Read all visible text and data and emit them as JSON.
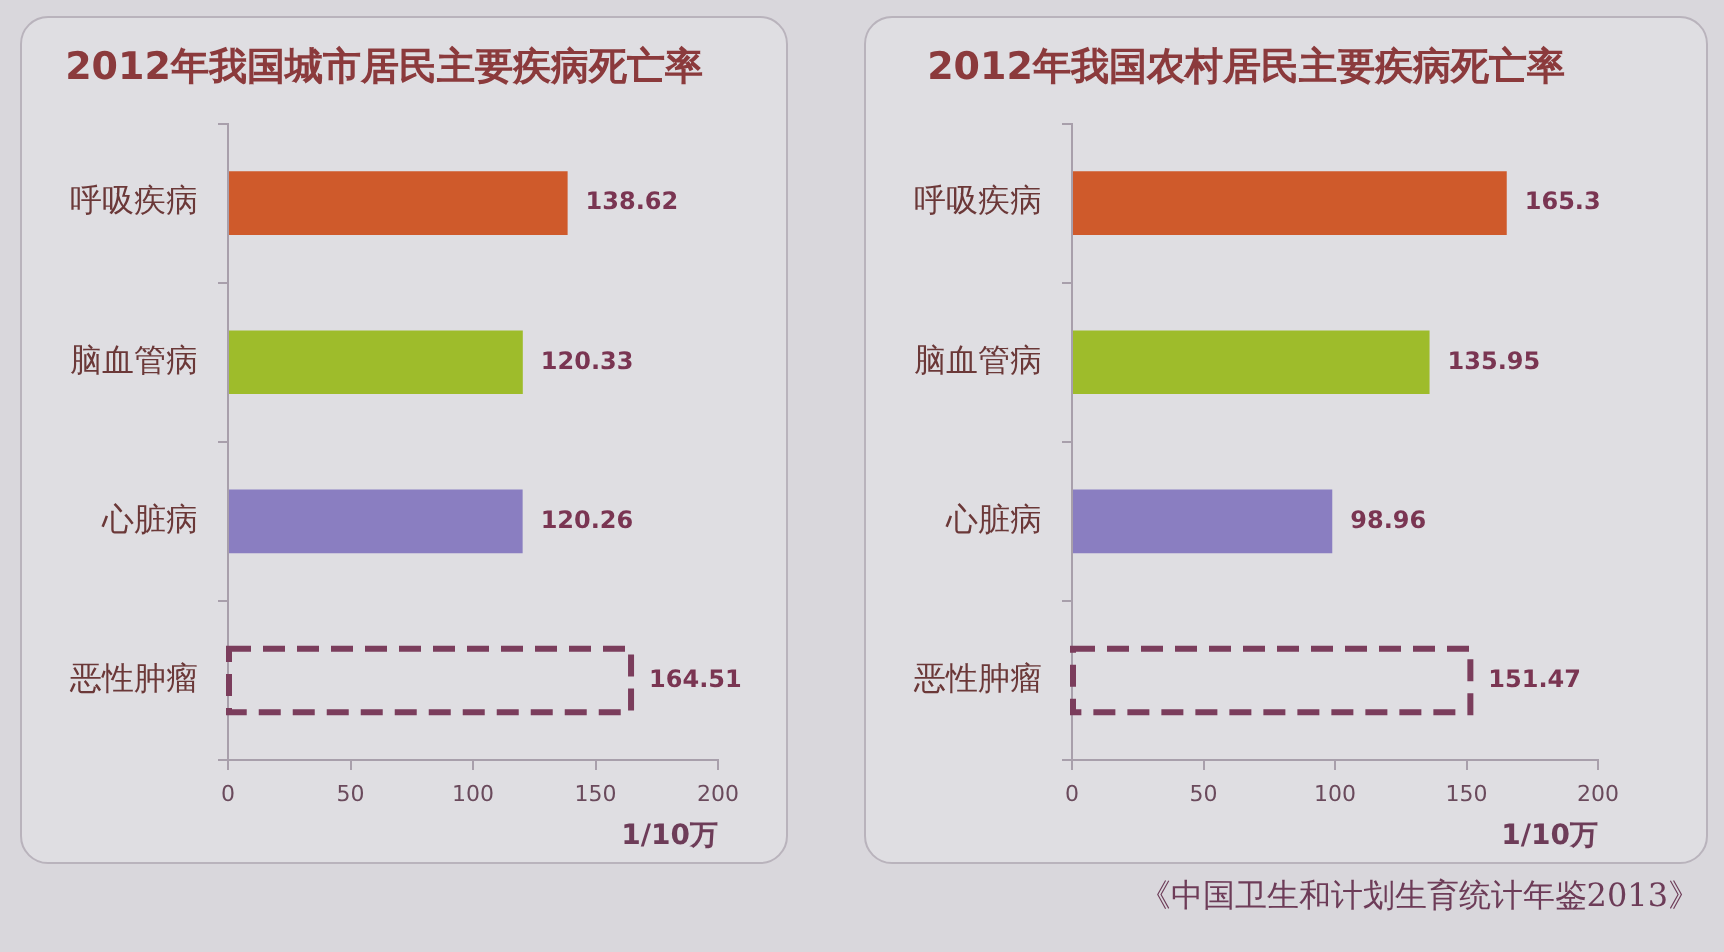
{
  "chart_data": [
    {
      "type": "bar",
      "orientation": "horizontal",
      "title": "2012年我国城市居民主要疾病死亡率",
      "xlabel": "1/10万",
      "categories": [
        "呼吸疾病",
        "脑血管病",
        "心脏病",
        "恶性肿瘤"
      ],
      "series": [
        {
          "colors": [
            "#cf5a2b",
            "#9ebc2b",
            "#8a7ec1",
            null
          ],
          "values": [
            138.62,
            120.33,
            120.26,
            null
          ]
        },
        {
          "color": "#7b3d5c",
          "line_style": "dashed",
          "values": [
            null,
            null,
            null,
            164.51
          ]
        }
      ],
      "xlim": [
        0,
        200
      ],
      "xticks": [
        0,
        50,
        100,
        150,
        200
      ],
      "data_labels": true
    },
    {
      "type": "bar",
      "orientation": "horizontal",
      "title": "2012年我国农村居民主要疾病死亡率",
      "xlabel": "1/10万",
      "categories": [
        "呼吸疾病",
        "脑血管病",
        "心脏病",
        "恶性肿瘤"
      ],
      "series": [
        {
          "colors": [
            "#cf5a2b",
            "#9ebc2b",
            "#8a7ec1",
            null
          ],
          "values": [
            165.3,
            135.95,
            98.96,
            null
          ]
        },
        {
          "color": "#7b3d5c",
          "line_style": "dashed",
          "values": [
            null,
            null,
            null,
            151.47
          ]
        }
      ],
      "xlim": [
        0,
        200
      ],
      "xticks": [
        0,
        50,
        100,
        150,
        200
      ],
      "data_labels": true,
      "annotations": [
        "《中国卫生和计划生育统计年鉴2013》"
      ]
    }
  ]
}
